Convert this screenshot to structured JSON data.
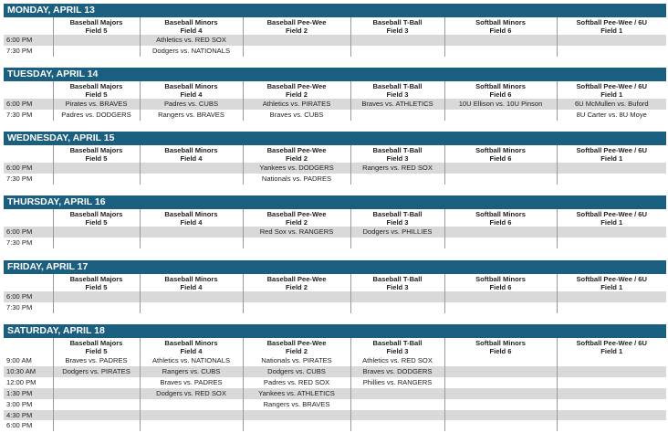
{
  "columns": [
    {
      "league": "Baseball Majors",
      "field": "Field 5"
    },
    {
      "league": "Baseball Minors",
      "field": "Field 4"
    },
    {
      "league": "Baseball Pee-Wee",
      "field": "Field 2"
    },
    {
      "league": "Baseball T-Ball",
      "field": "Field 3"
    },
    {
      "league": "Softball Minors",
      "field": "Field 6"
    },
    {
      "league": "Softball Pee-Wee / 6U",
      "field": "Field 1"
    }
  ],
  "days": [
    {
      "title": "MONDAY, APRIL 13",
      "rows": [
        {
          "time": "6:00 PM",
          "shade": true,
          "games": [
            "",
            "Athletics vs. RED SOX",
            "",
            "",
            "",
            ""
          ]
        },
        {
          "time": "7:30 PM",
          "shade": false,
          "games": [
            "",
            "Dodgers vs. NATIONALS",
            "",
            "",
            "",
            ""
          ]
        }
      ]
    },
    {
      "title": "TUESDAY, APRIL  14",
      "rows": [
        {
          "time": "6:00 PM",
          "shade": true,
          "games": [
            "Pirates vs. BRAVES",
            "Padres vs. CUBS",
            "Athletics vs. PIRATES",
            "Braves vs. ATHLETICS",
            "10U Ellison vs. 10U Pinson",
            "6U McMullen vs. Buford"
          ]
        },
        {
          "time": "7:30 PM",
          "shade": false,
          "games": [
            "Padres vs. DODGERS",
            "Rangers vs. BRAVES",
            "Braves vs. CUBS",
            "",
            "",
            "8U Carter vs. 8U Moye"
          ]
        }
      ]
    },
    {
      "title": "WEDNESDAY, APRIL 15",
      "rows": [
        {
          "time": "6:00 PM",
          "shade": true,
          "games": [
            "",
            "",
            "Yankees vs. DODGERS",
            "Rangers vs. RED SOX",
            "",
            ""
          ]
        },
        {
          "time": "7:30 PM",
          "shade": false,
          "games": [
            "",
            "",
            "Nationals vs. PADRES",
            "",
            "",
            ""
          ]
        }
      ]
    },
    {
      "title": "THURSDAY, APRIL 16",
      "rows": [
        {
          "time": "6:00 PM",
          "shade": true,
          "games": [
            "",
            "",
            "Red Sox vs. RANGERS",
            "Dodgers vs. PHILLIES",
            "",
            ""
          ]
        },
        {
          "time": "7:30 PM",
          "shade": false,
          "games": [
            "",
            "",
            "",
            "",
            "",
            ""
          ]
        }
      ]
    },
    {
      "title": "FRIDAY, APRIL 17",
      "rows": [
        {
          "time": "6:00 PM",
          "shade": true,
          "games": [
            "",
            "",
            "",
            "",
            "",
            ""
          ]
        },
        {
          "time": "7:30 PM",
          "shade": false,
          "games": [
            "",
            "",
            "",
            "",
            "",
            ""
          ]
        }
      ]
    },
    {
      "title": "SATURDAY, APRIL 18",
      "rows": [
        {
          "time": "9:00 AM",
          "shade": false,
          "games": [
            "Braves vs. PADRES",
            "Athletics vs. NATIONALS",
            "Nationals vs. PIRATES",
            "Athletics vs. RED SOX",
            "",
            ""
          ]
        },
        {
          "time": "10:30 AM",
          "shade": true,
          "games": [
            "Dodgers vs. PIRATES",
            "Rangers vs. CUBS",
            "Dodgers vs. CUBS",
            "Braves vs. DODGERS",
            "",
            ""
          ]
        },
        {
          "time": "12:00 PM",
          "shade": false,
          "games": [
            "",
            "Braves vs. PADRES",
            "Padres vs. RED SOX",
            "Phillies vs. RANGERS",
            "",
            ""
          ]
        },
        {
          "time": "1:30 PM",
          "shade": true,
          "games": [
            "",
            "Dodgers vs. RED SOX",
            "Yankees vs. ATHLETICS",
            "",
            "",
            ""
          ]
        },
        {
          "time": "3:00 PM",
          "shade": false,
          "games": [
            "",
            "",
            "Rangers vs. BRAVES",
            "",
            "",
            ""
          ]
        },
        {
          "time": "4:30 PM",
          "shade": true,
          "games": [
            "",
            "",
            "",
            "",
            "",
            ""
          ]
        },
        {
          "time": "6:00 PM",
          "shade": false,
          "games": [
            "",
            "",
            "",
            "",
            "",
            ""
          ]
        }
      ]
    }
  ]
}
